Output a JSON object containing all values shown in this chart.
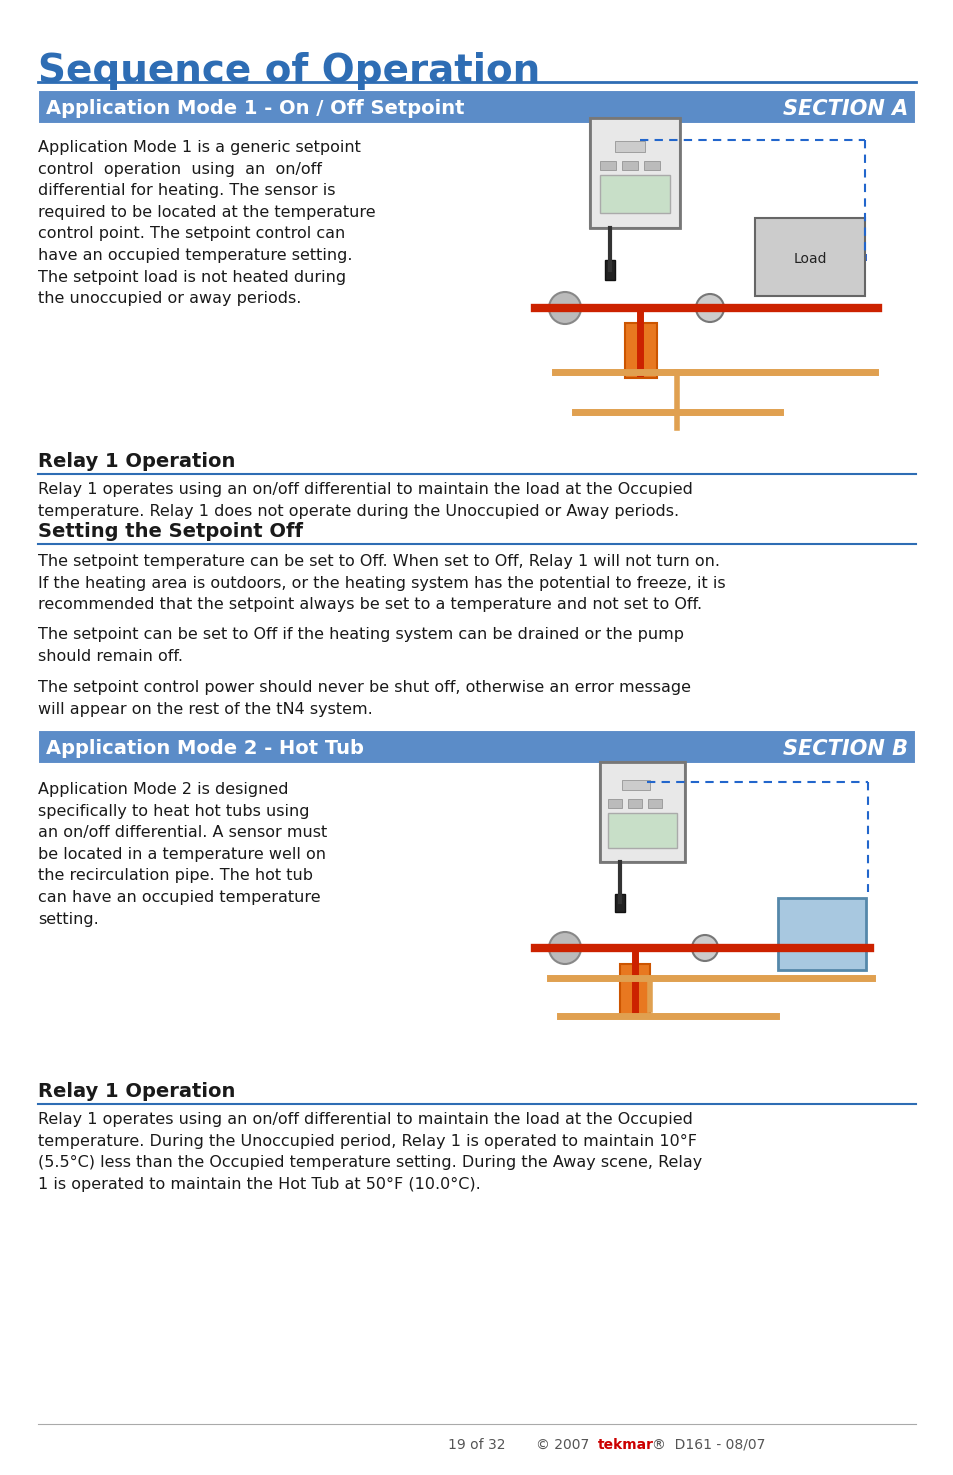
{
  "page_bg": "#ffffff",
  "title": "Sequence of Operation",
  "title_color": "#2E6DB4",
  "title_fontsize": 28,
  "section_a_label": "Application Mode 1 - On / Off Setpoint",
  "section_a_tag": "SECTION A",
  "section_b_label": "Application Mode 2 - Hot Tub",
  "section_b_tag": "SECTION B",
  "section_header_bg": "#5B8CC8",
  "section_header_text_color": "#ffffff",
  "section_header_fontsize": 14,
  "section_tag_fontsize": 15,
  "subheading_color": "#1a1a1a",
  "subheading_fontsize": 13,
  "body_fontsize": 11.5,
  "body_color": "#1a1a1a",
  "line_color": "#2E6DB4",
  "footer_text": "19 of 32",
  "section_a_body": "Application Mode 1 is a generic setpoint\ncontrol  operation  using  an  on/off\ndifferential for heating. The sensor is\nrequired to be located at the temperature\ncontrol point. The setpoint control can\nhave an occupied temperature setting.\nThe setpoint load is not heated during\nthe unoccupied or away periods.",
  "relay1_a_heading": "Relay 1 Operation",
  "relay1_a_body": "Relay 1 operates using an on/off differential to maintain the load at the Occupied\ntemperature. Relay 1 does not operate during the Unoccupied or Away periods.",
  "setpoint_off_heading": "Setting the Setpoint Off",
  "setpoint_off_body1": "The setpoint temperature can be set to Off. When set to Off, Relay 1 will not turn on.\nIf the heating area is outdoors, or the heating system has the potential to freeze, it is\nrecommended that the setpoint always be set to a temperature and not set to Off.",
  "setpoint_off_body2": "The setpoint can be set to Off if the heating system can be drained or the pump\nshould remain off.",
  "setpoint_off_body3": "The setpoint control power should never be shut off, otherwise an error message\nwill appear on the rest of the tN4 system.",
  "section_b_body": "Application Mode 2 is designed\nspecifically to heat hot tubs using\nan on/off differential. A sensor must\nbe located in a temperature well on\nthe recirculation pipe. The hot tub\ncan have an occupied temperature\nsetting.",
  "relay1_b_heading": "Relay 1 Operation",
  "relay1_b_body": "Relay 1 operates using an on/off differential to maintain the load at the Occupied\ntemperature. During the Unoccupied period, Relay 1 is operated to maintain 10°F\n(5.5°C) less than the Occupied temperature setting. During the Away scene, Relay\n1 is operated to maintain the Hot Tub at 50°F (10.0°C)."
}
